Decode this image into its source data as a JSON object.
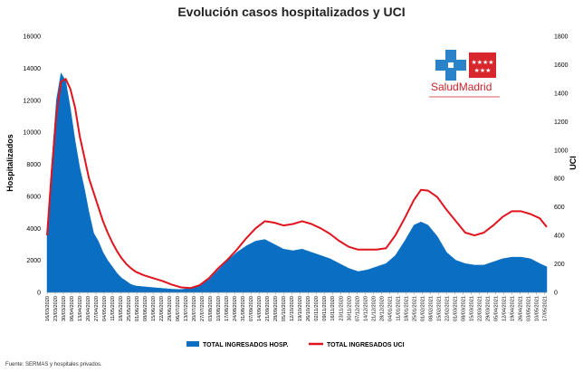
{
  "chart_data": {
    "type": "area",
    "title": "Evolución casos hospitalizados y UCI",
    "ylabel_left": "Hospitalizados",
    "ylabel_right": "UCI",
    "ylim_left": [
      0,
      16000
    ],
    "ylim_right": [
      0,
      1800
    ],
    "yticks_left": [
      "0",
      "2000",
      "4000",
      "6000",
      "8000",
      "10000",
      "12000",
      "14000",
      "16000"
    ],
    "yticks_right": [
      "0",
      "200",
      "400",
      "600",
      "800",
      "1000",
      "1200",
      "1400",
      "1600",
      "1800"
    ],
    "x_date_range": [
      "2020-03-16",
      "2021-05-19"
    ],
    "x_tick_labels": [
      "16/03/2020",
      "23/03/2020",
      "30/03/2020",
      "06/04/2020",
      "13/04/2020",
      "20/04/2020",
      "27/04/2020",
      "04/05/2020",
      "11/05/2020",
      "18/05/2020",
      "25/05/2020",
      "01/06/2020",
      "08/06/2020",
      "15/06/2020",
      "22/06/2020",
      "29/06/2020",
      "06/07/2020",
      "13/07/2020",
      "20/07/2020",
      "27/07/2020",
      "03/08/2020",
      "10/08/2020",
      "17/08/2020",
      "24/08/2020",
      "31/08/2020",
      "07/09/2020",
      "14/09/2020",
      "21/09/2020",
      "28/09/2020",
      "05/10/2020",
      "12/10/2020",
      "19/10/2020",
      "26/10/2020",
      "02/11/2020",
      "09/11/2020",
      "16/11/2020",
      "23/11/2020",
      "30/11/2020",
      "07/12/2020",
      "14/12/2020",
      "21/12/2020",
      "28/12/2020",
      "04/01/2021",
      "11/01/2021",
      "18/01/2021",
      "25/01/2021",
      "01/02/2021",
      "08/02/2021",
      "15/02/2021",
      "22/02/2021",
      "01/03/2021",
      "08/03/2021",
      "15/03/2021",
      "22/03/2021",
      "29/03/2021",
      "05/04/2021",
      "12/04/2021",
      "19/04/2021",
      "26/04/2021",
      "03/05/2021",
      "10/05/2021",
      "17/05/2021"
    ],
    "series": [
      {
        "name": "TOTAL INGRESADOS HOSP.",
        "type": "area",
        "axis": "left",
        "color": "#0a6fc2",
        "points": [
          [
            "2020-03-16",
            3500
          ],
          [
            "2020-03-20",
            8000
          ],
          [
            "2020-03-24",
            12000
          ],
          [
            "2020-03-28",
            13700
          ],
          [
            "2020-04-01",
            13200
          ],
          [
            "2020-04-05",
            11500
          ],
          [
            "2020-04-09",
            9500
          ],
          [
            "2020-04-13",
            7800
          ],
          [
            "2020-04-17",
            6500
          ],
          [
            "2020-04-21",
            5000
          ],
          [
            "2020-04-25",
            3700
          ],
          [
            "2020-04-29",
            3200
          ],
          [
            "2020-05-03",
            2500
          ],
          [
            "2020-05-07",
            2000
          ],
          [
            "2020-05-11",
            1600
          ],
          [
            "2020-05-15",
            1200
          ],
          [
            "2020-05-19",
            900
          ],
          [
            "2020-05-23",
            700
          ],
          [
            "2020-05-27",
            500
          ],
          [
            "2020-05-31",
            400
          ],
          [
            "2020-06-07",
            350
          ],
          [
            "2020-06-15",
            300
          ],
          [
            "2020-06-23",
            250
          ],
          [
            "2020-07-01",
            200
          ],
          [
            "2020-07-09",
            180
          ],
          [
            "2020-07-17",
            250
          ],
          [
            "2020-07-25",
            400
          ],
          [
            "2020-08-02",
            800
          ],
          [
            "2020-08-10",
            1400
          ],
          [
            "2020-08-18",
            2000
          ],
          [
            "2020-08-26",
            2500
          ],
          [
            "2020-09-03",
            2900
          ],
          [
            "2020-09-11",
            3200
          ],
          [
            "2020-09-19",
            3300
          ],
          [
            "2020-09-27",
            3000
          ],
          [
            "2020-10-05",
            2700
          ],
          [
            "2020-10-13",
            2600
          ],
          [
            "2020-10-21",
            2700
          ],
          [
            "2020-10-29",
            2500
          ],
          [
            "2020-11-06",
            2300
          ],
          [
            "2020-11-14",
            2100
          ],
          [
            "2020-11-22",
            1800
          ],
          [
            "2020-11-30",
            1500
          ],
          [
            "2020-12-08",
            1300
          ],
          [
            "2020-12-16",
            1400
          ],
          [
            "2020-12-24",
            1600
          ],
          [
            "2021-01-01",
            1800
          ],
          [
            "2021-01-09",
            2300
          ],
          [
            "2021-01-17",
            3200
          ],
          [
            "2021-01-25",
            4200
          ],
          [
            "2021-01-31",
            4400
          ],
          [
            "2021-02-06",
            4200
          ],
          [
            "2021-02-14",
            3500
          ],
          [
            "2021-02-22",
            2500
          ],
          [
            "2021-03-02",
            2000
          ],
          [
            "2021-03-10",
            1800
          ],
          [
            "2021-03-18",
            1700
          ],
          [
            "2021-03-26",
            1700
          ],
          [
            "2021-04-03",
            1900
          ],
          [
            "2021-04-11",
            2100
          ],
          [
            "2021-04-19",
            2200
          ],
          [
            "2021-04-27",
            2200
          ],
          [
            "2021-05-05",
            2100
          ],
          [
            "2021-05-13",
            1800
          ],
          [
            "2021-05-19",
            1600
          ]
        ]
      },
      {
        "name": "TOTAL INGRESADOS UCI",
        "type": "line",
        "axis": "right",
        "color": "#e0141e",
        "points": [
          [
            "2020-03-16",
            400
          ],
          [
            "2020-03-20",
            850
          ],
          [
            "2020-03-24",
            1250
          ],
          [
            "2020-03-28",
            1480
          ],
          [
            "2020-04-01",
            1500
          ],
          [
            "2020-04-05",
            1430
          ],
          [
            "2020-04-09",
            1300
          ],
          [
            "2020-04-13",
            1100
          ],
          [
            "2020-04-17",
            950
          ],
          [
            "2020-04-21",
            800
          ],
          [
            "2020-04-25",
            700
          ],
          [
            "2020-04-29",
            600
          ],
          [
            "2020-05-03",
            500
          ],
          [
            "2020-05-07",
            420
          ],
          [
            "2020-05-11",
            350
          ],
          [
            "2020-05-15",
            290
          ],
          [
            "2020-05-19",
            240
          ],
          [
            "2020-05-23",
            200
          ],
          [
            "2020-05-27",
            170
          ],
          [
            "2020-05-31",
            145
          ],
          [
            "2020-06-07",
            120
          ],
          [
            "2020-06-15",
            100
          ],
          [
            "2020-06-23",
            80
          ],
          [
            "2020-07-01",
            55
          ],
          [
            "2020-07-09",
            35
          ],
          [
            "2020-07-17",
            30
          ],
          [
            "2020-07-25",
            50
          ],
          [
            "2020-08-02",
            100
          ],
          [
            "2020-08-10",
            170
          ],
          [
            "2020-08-18",
            230
          ],
          [
            "2020-08-26",
            300
          ],
          [
            "2020-09-03",
            380
          ],
          [
            "2020-09-11",
            450
          ],
          [
            "2020-09-19",
            500
          ],
          [
            "2020-09-27",
            490
          ],
          [
            "2020-10-05",
            470
          ],
          [
            "2020-10-13",
            480
          ],
          [
            "2020-10-21",
            500
          ],
          [
            "2020-10-29",
            480
          ],
          [
            "2020-11-06",
            450
          ],
          [
            "2020-11-14",
            410
          ],
          [
            "2020-11-22",
            360
          ],
          [
            "2020-11-30",
            320
          ],
          [
            "2020-12-08",
            300
          ],
          [
            "2020-12-16",
            300
          ],
          [
            "2020-12-24",
            300
          ],
          [
            "2021-01-01",
            310
          ],
          [
            "2021-01-09",
            400
          ],
          [
            "2021-01-17",
            520
          ],
          [
            "2021-01-25",
            650
          ],
          [
            "2021-01-31",
            720
          ],
          [
            "2021-02-06",
            715
          ],
          [
            "2021-02-14",
            670
          ],
          [
            "2021-02-22",
            580
          ],
          [
            "2021-03-02",
            500
          ],
          [
            "2021-03-10",
            420
          ],
          [
            "2021-03-18",
            400
          ],
          [
            "2021-03-26",
            420
          ],
          [
            "2021-04-03",
            470
          ],
          [
            "2021-04-11",
            530
          ],
          [
            "2021-04-19",
            570
          ],
          [
            "2021-04-27",
            570
          ],
          [
            "2021-05-05",
            550
          ],
          [
            "2021-05-13",
            520
          ],
          [
            "2021-05-19",
            460
          ]
        ]
      }
    ],
    "grid": false,
    "legend_position": "bottom"
  },
  "logo": {
    "text_salud": "Salud",
    "text_madrid": "Madrid",
    "cross_color": "#2a82c8",
    "flag_color": "#d7262c",
    "text_color": "#c8242b"
  },
  "source": "Fuente: SERMAS y hospitales privados."
}
